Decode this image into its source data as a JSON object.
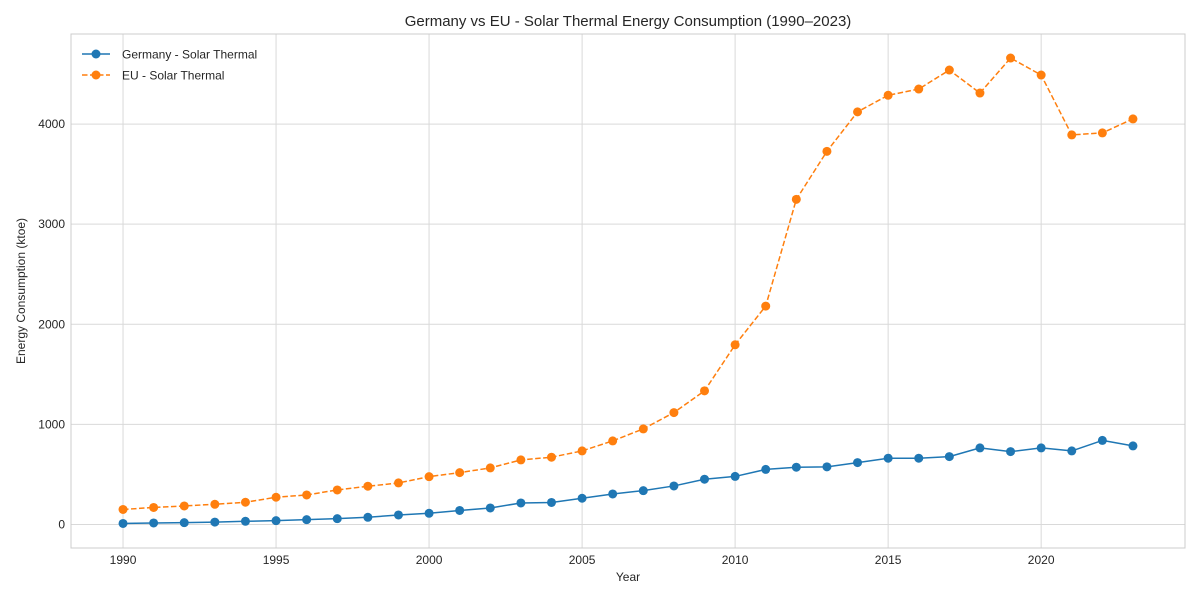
{
  "chart_data": {
    "type": "line",
    "title": "Germany vs EU - Solar Thermal Energy Consumption (1990–2023)",
    "xlabel": "Year",
    "ylabel": "Energy Consumption (ktoe)",
    "xlim": [
      1988.3,
      2024.7
    ],
    "ylim": [
      -235,
      4900
    ],
    "xticks": [
      1990,
      1995,
      2000,
      2005,
      2010,
      2015,
      2020
    ],
    "yticks": [
      0,
      1000,
      2000,
      3000,
      4000
    ],
    "grid": true,
    "legend_position": "top-left",
    "x": [
      1990,
      1991,
      1992,
      1993,
      1994,
      1995,
      1996,
      1997,
      1998,
      1999,
      2000,
      2001,
      2002,
      2003,
      2004,
      2005,
      2006,
      2007,
      2008,
      2009,
      2010,
      2011,
      2012,
      2013,
      2014,
      2015,
      2016,
      2017,
      2018,
      2019,
      2020,
      2021,
      2022,
      2023
    ],
    "series": [
      {
        "name": "Germany - Solar Thermal",
        "color": "#1f77b4",
        "line_style": "solid",
        "marker": "circle",
        "values": [
          10,
          15,
          18,
          24,
          32,
          38,
          48,
          58,
          72,
          95,
          112,
          140,
          165,
          215,
          220,
          262,
          305,
          338,
          385,
          452,
          480,
          550,
          572,
          576,
          618,
          662,
          662,
          678,
          765,
          728,
          765,
          735,
          840,
          785
        ]
      },
      {
        "name": "EU - Solar Thermal",
        "color": "#ff7f0e",
        "line_style": "dashed",
        "marker": "circle",
        "values": [
          150,
          170,
          185,
          202,
          222,
          272,
          295,
          345,
          382,
          415,
          478,
          518,
          565,
          645,
          672,
          735,
          835,
          955,
          1118,
          1335,
          1795,
          2182,
          3248,
          3728,
          4122,
          4288,
          4350,
          4540,
          4310,
          4660,
          4490,
          3892,
          3912,
          4052
        ]
      }
    ]
  }
}
